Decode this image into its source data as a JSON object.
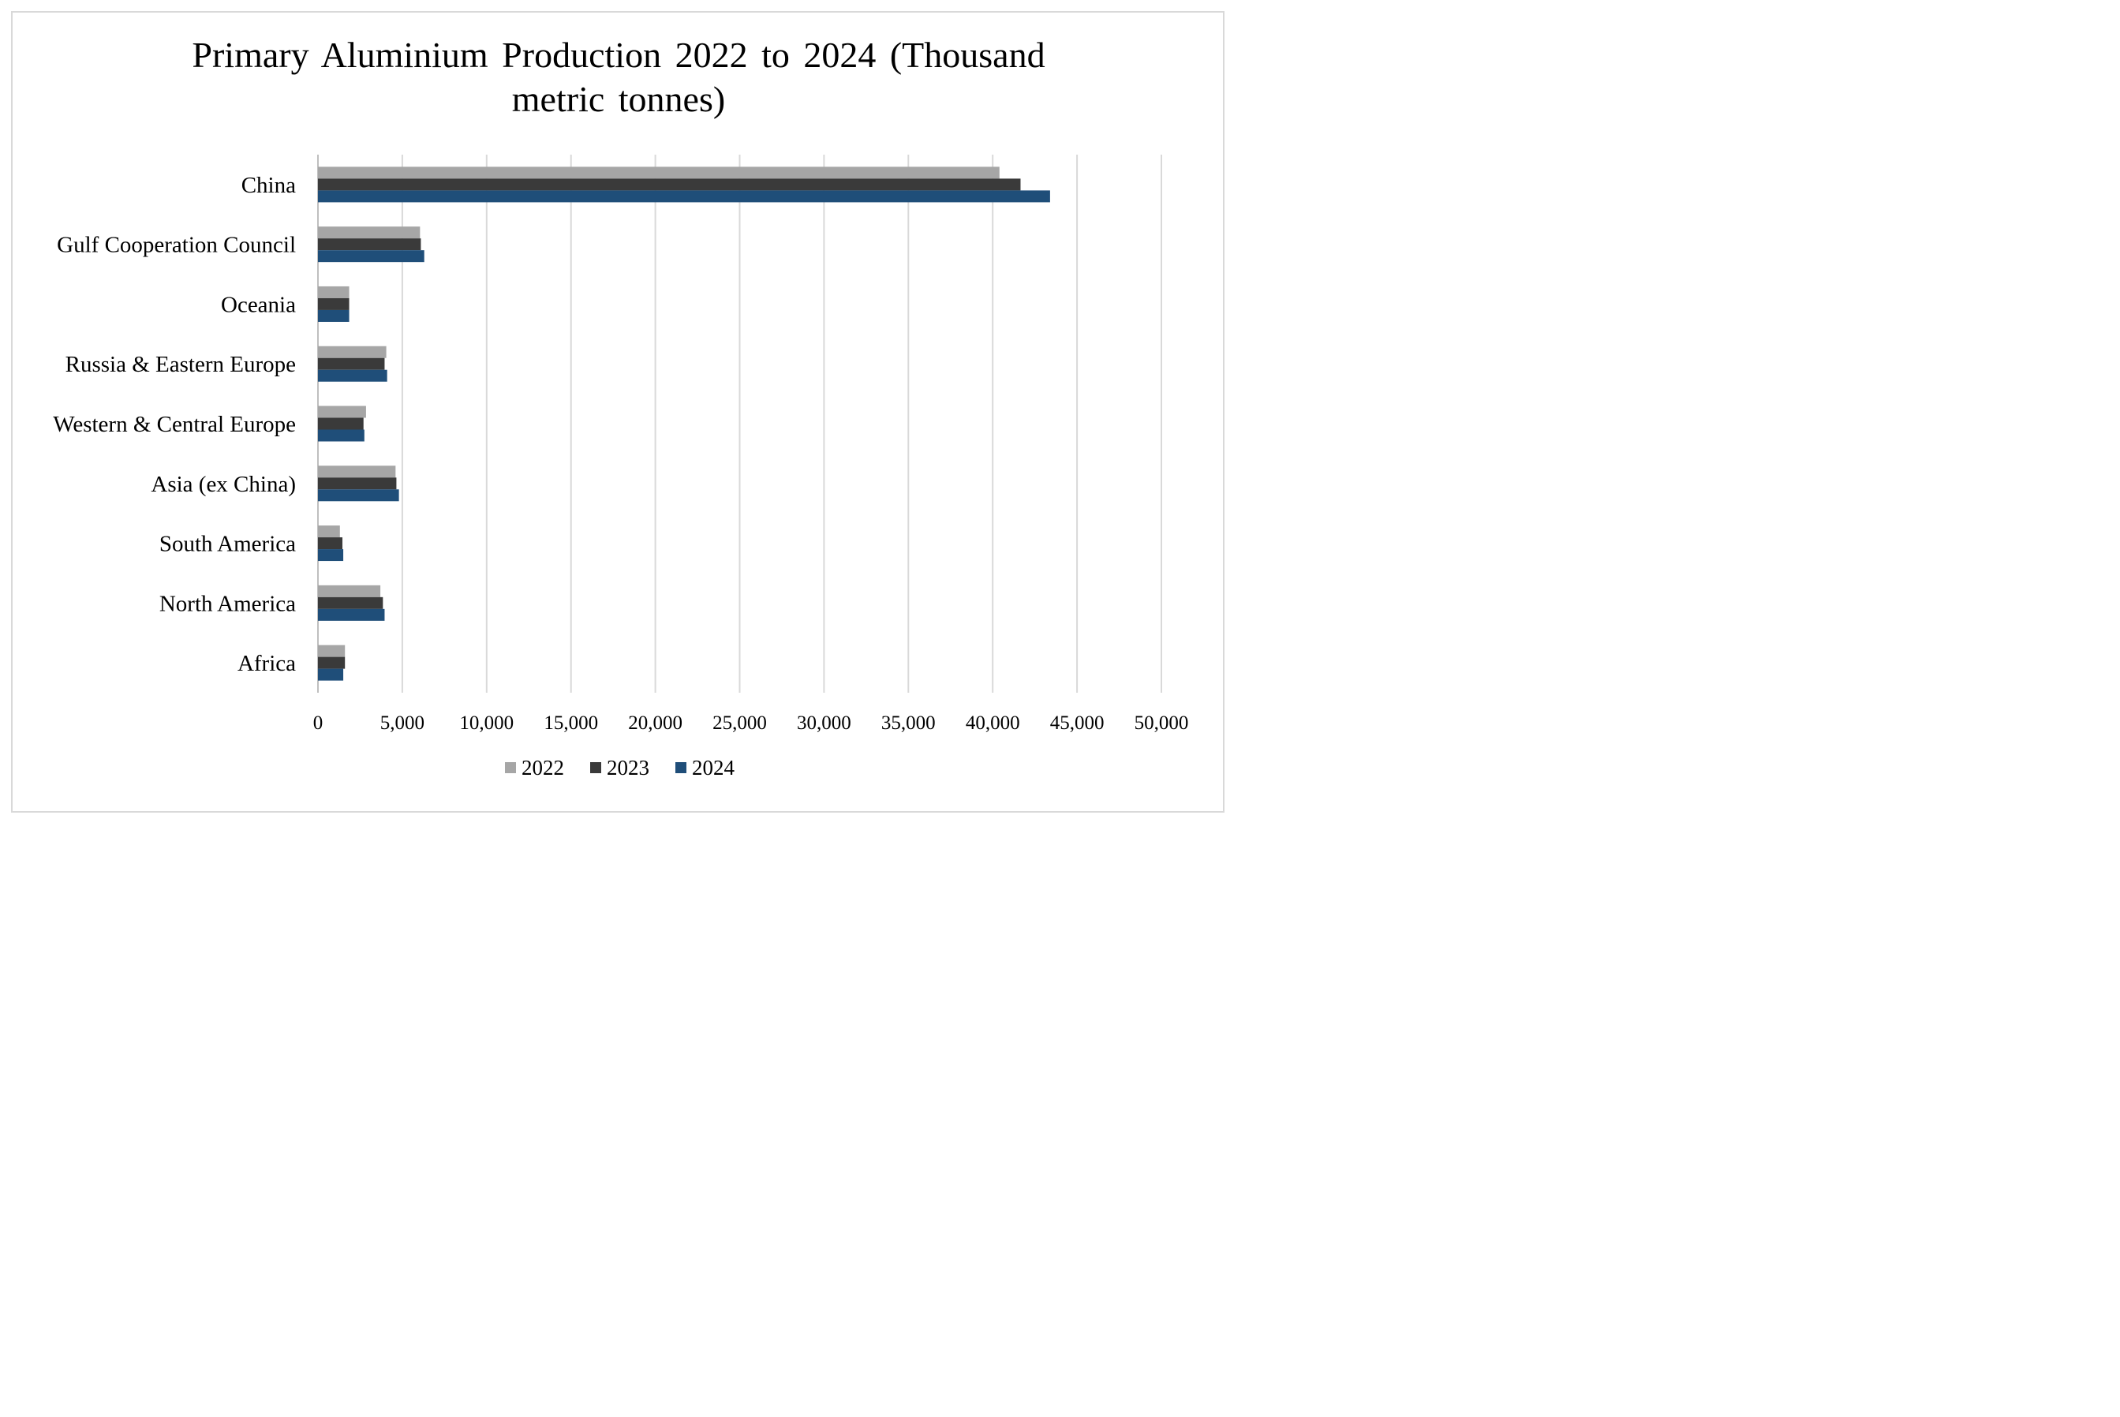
{
  "chart_data": {
    "type": "bar",
    "orientation": "horizontal",
    "title_lines": [
      "Primary Aluminium Production 2022 to 2024 (Thousand",
      "metric tonnes)"
    ],
    "categories": [
      "China",
      "Gulf Cooperation Council",
      "Oceania",
      "Russia & Eastern Europe",
      "Western & Central Europe",
      "Asia (ex China)",
      "South America",
      "North America",
      "Africa"
    ],
    "series": [
      {
        "name": "2022",
        "color": "#a6a6a6",
        "values": [
          40400,
          6050,
          1850,
          4050,
          2850,
          4600,
          1300,
          3700,
          1600
        ]
      },
      {
        "name": "2023",
        "color": "#3a3a3a",
        "values": [
          41650,
          6100,
          1850,
          3950,
          2700,
          4650,
          1450,
          3850,
          1600
        ]
      },
      {
        "name": "2024",
        "color": "#1f4e79",
        "values": [
          43400,
          6300,
          1850,
          4100,
          2750,
          4800,
          1500,
          3950,
          1500
        ]
      }
    ],
    "xlim": [
      0,
      50000
    ],
    "x_ticks": [
      0,
      5000,
      10000,
      15000,
      20000,
      25000,
      30000,
      35000,
      40000,
      45000,
      50000
    ],
    "x_tick_labels": [
      "0",
      "5,000",
      "10,000",
      "15,000",
      "20,000",
      "25,000",
      "30,000",
      "35,000",
      "40,000",
      "45,000",
      "50,000"
    ],
    "grid": "vertical",
    "legend_position": "bottom",
    "xlabel": "",
    "ylabel": ""
  }
}
